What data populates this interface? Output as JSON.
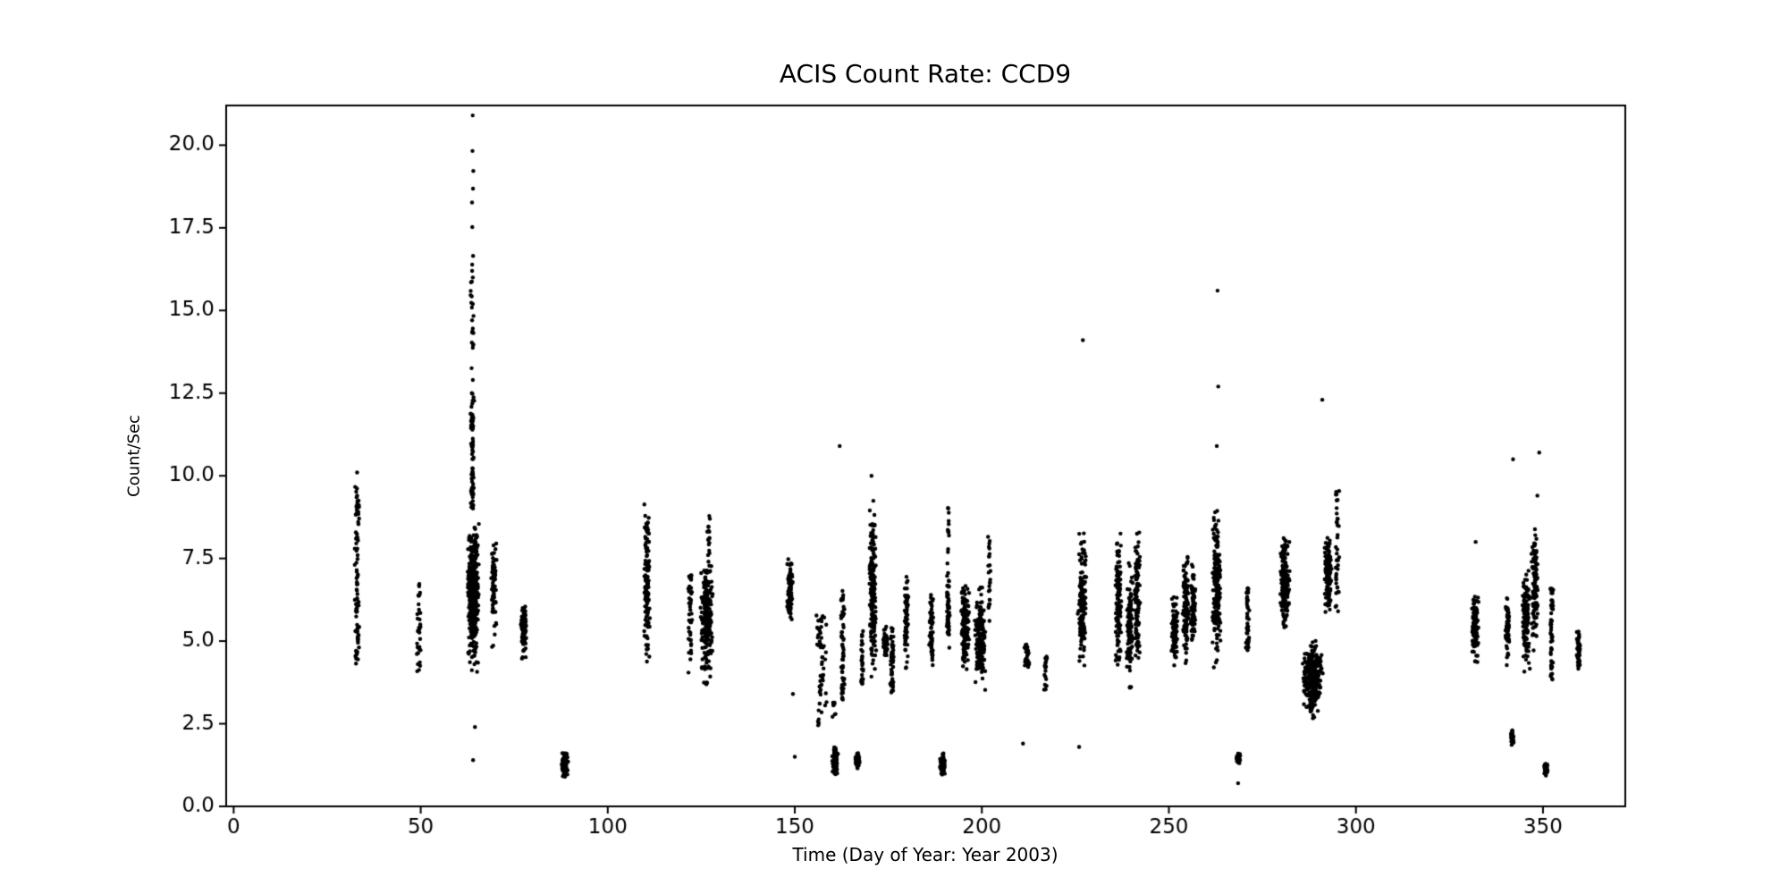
{
  "chart_data": {
    "type": "scatter",
    "title": "ACIS Count Rate: CCD9",
    "xlabel": "Time (Day of Year: Year 2003)",
    "ylabel": "Count/Sec",
    "xlim": [
      -2,
      372
    ],
    "ylim": [
      0,
      21.2
    ],
    "grid": false,
    "legend": null,
    "xticks": {
      "values": [
        0,
        50,
        100,
        150,
        200,
        250,
        300,
        350
      ],
      "labels": [
        "0",
        "50",
        "100",
        "150",
        "200",
        "250",
        "300",
        "350"
      ]
    },
    "yticks": {
      "values": [
        0,
        2.5,
        5,
        7.5,
        10,
        12.5,
        15,
        17.5,
        20
      ],
      "labels": [
        "0.0",
        "2.5",
        "5.0",
        "7.5",
        "10.0",
        "12.5",
        "15.0",
        "17.5",
        "20.0"
      ]
    },
    "marker": {
      "color": "#000000",
      "radius_px": 2.2
    },
    "clusters": [
      {
        "x": 33,
        "xs": 0.7,
        "y0": 4.3,
        "y1": 9.7,
        "n": 90,
        "d": "u"
      },
      {
        "x": 49.5,
        "xs": 0.6,
        "y0": 3.8,
        "y1": 6.8,
        "n": 35,
        "d": "u"
      },
      {
        "x": 64,
        "xs": 1.6,
        "y0": 3.8,
        "y1": 9.0,
        "n": 380,
        "d": "g"
      },
      {
        "x": 63.8,
        "xs": 0.5,
        "y0": 9.0,
        "y1": 20.9,
        "n": 110,
        "d": "b"
      },
      {
        "x": 69.5,
        "xs": 0.8,
        "y0": 4.4,
        "y1": 9.0,
        "n": 70,
        "d": "g"
      },
      {
        "x": 77.5,
        "xs": 0.8,
        "y0": 4.2,
        "y1": 6.5,
        "n": 90,
        "d": "g"
      },
      {
        "x": 88.5,
        "xs": 0.9,
        "y0": 0.7,
        "y1": 1.8,
        "n": 110,
        "d": "g"
      },
      {
        "x": 110.5,
        "xs": 0.8,
        "y0": 3.5,
        "y1": 9.9,
        "n": 130,
        "d": "g"
      },
      {
        "x": 122,
        "xs": 0.6,
        "y0": 3.9,
        "y1": 7.0,
        "n": 45,
        "d": "u"
      },
      {
        "x": 126.5,
        "xs": 1.8,
        "y0": 3.3,
        "y1": 8.2,
        "n": 200,
        "d": "g"
      },
      {
        "x": 127,
        "xs": 0.5,
        "y0": 7.6,
        "y1": 8.8,
        "n": 15,
        "d": "u"
      },
      {
        "x": 148.7,
        "xs": 0.8,
        "y0": 5.3,
        "y1": 7.7,
        "n": 90,
        "d": "g"
      },
      {
        "x": 157,
        "xs": 1.5,
        "y0": 2.4,
        "y1": 5.8,
        "n": 55,
        "d": "u"
      },
      {
        "x": 160.8,
        "xs": 0.8,
        "y0": 0.9,
        "y1": 1.9,
        "n": 130,
        "d": "g"
      },
      {
        "x": 160.5,
        "xs": 0.5,
        "y0": 2.5,
        "y1": 3.2,
        "n": 8,
        "d": "u"
      },
      {
        "x": 162.8,
        "xs": 0.5,
        "y0": 3.2,
        "y1": 6.6,
        "n": 60,
        "d": "u"
      },
      {
        "x": 166.8,
        "xs": 0.6,
        "y0": 1.1,
        "y1": 1.7,
        "n": 70,
        "d": "g"
      },
      {
        "x": 168,
        "xs": 0.4,
        "y0": 3.7,
        "y1": 5.3,
        "n": 30,
        "d": "u"
      },
      {
        "x": 170.8,
        "xs": 1.0,
        "y0": 3.4,
        "y1": 9.7,
        "n": 170,
        "d": "g"
      },
      {
        "x": 174.2,
        "xs": 0.6,
        "y0": 4.3,
        "y1": 5.6,
        "n": 60,
        "d": "g"
      },
      {
        "x": 176,
        "xs": 0.5,
        "y0": 3.4,
        "y1": 5.4,
        "n": 40,
        "d": "u"
      },
      {
        "x": 179.8,
        "xs": 0.6,
        "y0": 3.6,
        "y1": 7.5,
        "n": 70,
        "d": "g"
      },
      {
        "x": 186.5,
        "xs": 0.7,
        "y0": 3.9,
        "y1": 7.0,
        "n": 60,
        "d": "g"
      },
      {
        "x": 189.5,
        "xs": 0.7,
        "y0": 0.8,
        "y1": 1.7,
        "n": 90,
        "d": "g"
      },
      {
        "x": 191,
        "xs": 0.5,
        "y0": 4.4,
        "y1": 7.6,
        "n": 60,
        "d": "g"
      },
      {
        "x": 191,
        "xs": 0.3,
        "y0": 7.6,
        "y1": 9.3,
        "n": 12,
        "d": "u"
      },
      {
        "x": 195.5,
        "xs": 1.2,
        "y0": 3.7,
        "y1": 7.0,
        "n": 130,
        "d": "g"
      },
      {
        "x": 199.5,
        "xs": 1.5,
        "y0": 3.4,
        "y1": 6.9,
        "n": 160,
        "d": "g"
      },
      {
        "x": 202,
        "xs": 0.4,
        "y0": 5.4,
        "y1": 8.3,
        "n": 25,
        "d": "u"
      },
      {
        "x": 212,
        "xs": 0.8,
        "y0": 4.2,
        "y1": 4.9,
        "n": 30,
        "d": "u"
      },
      {
        "x": 217,
        "xs": 0.5,
        "y0": 3.5,
        "y1": 4.6,
        "n": 20,
        "d": "u"
      },
      {
        "x": 226.8,
        "xs": 1.2,
        "y0": 3.7,
        "y1": 8.6,
        "n": 150,
        "d": "g"
      },
      {
        "x": 236.5,
        "xs": 0.9,
        "y0": 3.8,
        "y1": 8.6,
        "n": 120,
        "d": "g"
      },
      {
        "x": 239.5,
        "xs": 0.9,
        "y0": 3.2,
        "y1": 7.6,
        "n": 110,
        "d": "g"
      },
      {
        "x": 241.5,
        "xs": 0.8,
        "y0": 3.5,
        "y1": 8.9,
        "n": 110,
        "d": "g"
      },
      {
        "x": 251.5,
        "xs": 0.9,
        "y0": 4.0,
        "y1": 6.7,
        "n": 90,
        "d": "g"
      },
      {
        "x": 254.5,
        "xs": 0.9,
        "y0": 3.9,
        "y1": 8.2,
        "n": 110,
        "d": "g"
      },
      {
        "x": 256.5,
        "xs": 0.7,
        "y0": 4.4,
        "y1": 7.7,
        "n": 80,
        "d": "g"
      },
      {
        "x": 262.8,
        "xs": 1.2,
        "y0": 3.9,
        "y1": 9.7,
        "n": 200,
        "d": "g"
      },
      {
        "x": 268.6,
        "xs": 0.5,
        "y0": 1.2,
        "y1": 1.7,
        "n": 50,
        "d": "g"
      },
      {
        "x": 271,
        "xs": 0.5,
        "y0": 4.5,
        "y1": 6.6,
        "n": 50,
        "d": "u"
      },
      {
        "x": 281,
        "xs": 1.3,
        "y0": 4.9,
        "y1": 8.4,
        "n": 160,
        "d": "g"
      },
      {
        "x": 288.5,
        "xs": 2.8,
        "y0": 2.5,
        "y1": 5.2,
        "n": 330,
        "d": "g"
      },
      {
        "x": 292.5,
        "xs": 1.0,
        "y0": 5.5,
        "y1": 8.5,
        "n": 130,
        "d": "g"
      },
      {
        "x": 295,
        "xs": 0.6,
        "y0": 5.7,
        "y1": 9.6,
        "n": 40,
        "d": "u"
      },
      {
        "x": 331.8,
        "xs": 1.0,
        "y0": 4.0,
        "y1": 6.9,
        "n": 110,
        "d": "g"
      },
      {
        "x": 340.5,
        "xs": 0.6,
        "y0": 4.2,
        "y1": 6.5,
        "n": 60,
        "d": "g"
      },
      {
        "x": 341.8,
        "xs": 0.4,
        "y0": 1.8,
        "y1": 2.4,
        "n": 35,
        "d": "g"
      },
      {
        "x": 345.5,
        "xs": 1.0,
        "y0": 3.6,
        "y1": 7.5,
        "n": 120,
        "d": "g"
      },
      {
        "x": 347.8,
        "xs": 0.9,
        "y0": 4.3,
        "y1": 8.9,
        "n": 110,
        "d": "g"
      },
      {
        "x": 350.8,
        "xs": 0.5,
        "y0": 0.9,
        "y1": 1.4,
        "n": 60,
        "d": "g"
      },
      {
        "x": 352.3,
        "xs": 0.5,
        "y0": 3.8,
        "y1": 6.6,
        "n": 50,
        "d": "u"
      },
      {
        "x": 359.5,
        "xs": 0.5,
        "y0": 3.8,
        "y1": 5.7,
        "n": 45,
        "d": "g"
      }
    ],
    "outliers": [
      [
        33,
        10.1
      ],
      [
        64,
        1.4
      ],
      [
        64.5,
        2.4
      ],
      [
        63.9,
        20.9
      ],
      [
        150,
        1.5
      ],
      [
        149.5,
        3.4
      ],
      [
        162,
        10.9
      ],
      [
        170.5,
        10.0
      ],
      [
        211,
        1.9
      ],
      [
        226,
        1.8
      ],
      [
        227,
        14.1
      ],
      [
        262.8,
        10.9
      ],
      [
        263.2,
        12.7
      ],
      [
        263,
        15.6
      ],
      [
        268.5,
        0.7
      ],
      [
        291,
        12.3
      ],
      [
        332,
        8.0
      ],
      [
        342,
        10.5
      ],
      [
        348.5,
        9.4
      ],
      [
        349,
        10.7
      ]
    ]
  }
}
